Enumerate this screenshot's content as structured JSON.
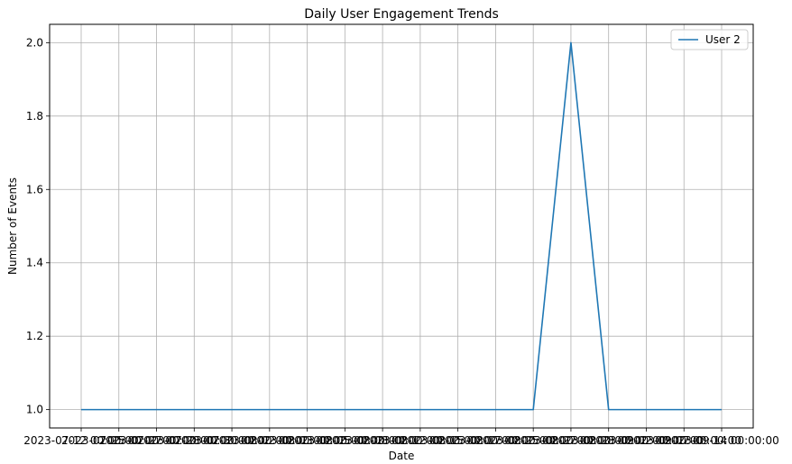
{
  "chart_data": {
    "type": "line",
    "title": "Daily User Engagement Trends",
    "xlabel": "Date",
    "ylabel": "Number of Events",
    "x": [
      "2023-07-12 00:00:00",
      "2023-07-25 00:00:00",
      "2023-07-27 00:00:00",
      "2023-07-28 00:00:00",
      "2023-07-30 00:00:00",
      "2023-08-02 00:00:00",
      "2023-08-03 00:00:00",
      "2023-08-05 00:00:00",
      "2023-08-08 00:00:00",
      "2023-08-12 00:00:00",
      "2023-08-15 00:00:00",
      "2023-08-17 00:00:00",
      "2023-08-25 00:00:00",
      "2023-08-27 00:00:00",
      "2023-08-28 00:00:00",
      "2023-09-02 00:00:00",
      "2023-09-07 00:00:00",
      "2023-09-14 00:00:00"
    ],
    "series": [
      {
        "name": "User 2",
        "values": [
          1,
          1,
          1,
          1,
          1,
          1,
          1,
          1,
          1,
          1,
          1,
          1,
          1,
          2,
          1,
          1,
          1,
          1
        ],
        "color": "#1f77b4"
      }
    ],
    "ylim": [
      0.95,
      2.05
    ],
    "yticks": [
      1.0,
      1.2,
      1.4,
      1.6,
      1.8,
      2.0
    ],
    "ytick_labels": [
      "1.0",
      "1.2",
      "1.4",
      "1.6",
      "1.8",
      "2.0"
    ],
    "grid": true,
    "legend_position": "top-right"
  }
}
